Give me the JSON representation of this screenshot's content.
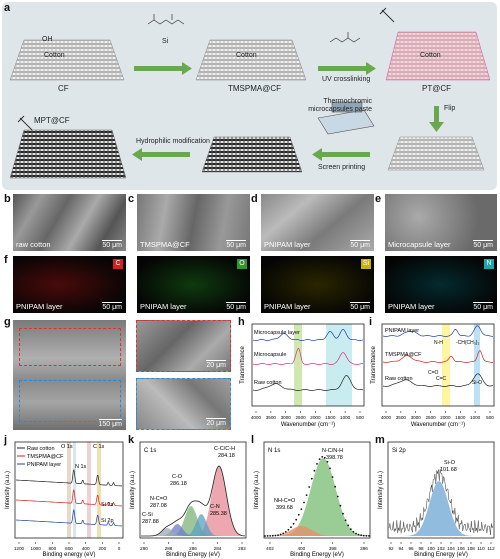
{
  "panel_labels": {
    "a": "a",
    "b": "b",
    "c": "c",
    "d": "d",
    "e": "e",
    "f": "f",
    "g": "g",
    "h": "h",
    "i": "i",
    "j": "j",
    "k": "k",
    "l": "l",
    "m": "m"
  },
  "schematic": {
    "cotton_label": "Cotton",
    "cf": "CF",
    "tmspma_cf": "TMSPMA@CF",
    "pt_cf": "PT@CF",
    "uv": "UV crosslinking",
    "flip": "Flip",
    "paste": "Thermochromic microcapsules paste",
    "screen": "Screen printing",
    "hydrophilic": "Hydrophilic modification",
    "mpt": "MPT@CF",
    "oh": "OH",
    "si": "Si"
  },
  "sem": [
    {
      "label": "raw cotton",
      "scale": "50 μm"
    },
    {
      "label": "TMSPMA@CF",
      "scale": "50 μm"
    },
    {
      "label": "PNIPAM layer",
      "scale": "50 μm"
    },
    {
      "label": "Microcapsule layer",
      "scale": "50 μm"
    }
  ],
  "edx": [
    {
      "label": "PNIPAM layer",
      "scale": "50 μm",
      "element": "C",
      "color": "#d42020"
    },
    {
      "label": "PNIPAM layer",
      "scale": "50 μm",
      "element": "O",
      "color": "#2a9a2a"
    },
    {
      "label": "PNIPAM layer",
      "scale": "50 μm",
      "element": "Si",
      "color": "#c8b400"
    },
    {
      "label": "PNIPAM layer",
      "scale": "50 μm",
      "element": "N",
      "color": "#1aa7b0"
    }
  ],
  "g_panel": {
    "scale_main": "150 μm",
    "scale_top": "20 μm",
    "scale_bottom": "20 μm"
  },
  "chart_data": [
    {
      "panel": "h",
      "type": "line",
      "xlabel": "Wavenumber (cm⁻¹)",
      "ylabel": "Transmittance",
      "xticks": [
        "4000",
        "3500",
        "3000",
        "2500",
        "2000",
        "1500",
        "1000",
        "500"
      ],
      "series": [
        {
          "name": "Microcapsule layer",
          "color": "#1f3fb0"
        },
        {
          "name": "Microcapsule",
          "color": "#e0307a"
        },
        {
          "name": "Raw cotton",
          "color": "#222222"
        }
      ]
    },
    {
      "panel": "i",
      "type": "line",
      "xlabel": "Wavenumber (cm⁻¹)",
      "ylabel": "Transmittance",
      "xticks": [
        "4000",
        "3500",
        "3000",
        "2500",
        "2000",
        "1500",
        "1000",
        "500"
      ],
      "series": [
        {
          "name": "PNIPAM layer",
          "color": "#1f3fb0"
        },
        {
          "name": "TMSPMA@CF",
          "color": "#d42020"
        },
        {
          "name": "Raw cotton",
          "color": "#222222"
        }
      ],
      "annotations": [
        "N-H",
        "-CH(CH₃)₂",
        "C=O",
        "C=C",
        "Si-O"
      ]
    },
    {
      "panel": "j",
      "type": "line",
      "xlabel": "Binding energy (eV)",
      "ylabel": "Intensity (a.u.)",
      "xticks": [
        "1200",
        "1000",
        "800",
        "600",
        "400",
        "200",
        "0"
      ],
      "series": [
        {
          "name": "Raw cotton",
          "color": "#222222"
        },
        {
          "name": "TMSPMA@CF",
          "color": "#d42020"
        },
        {
          "name": "PNIPAM layer",
          "color": "#1f3fb0"
        }
      ],
      "annotations": [
        "O 1s",
        "N 1s",
        "C 1s",
        "Si 2s",
        "Si 2p"
      ]
    },
    {
      "panel": "k",
      "type": "area",
      "xlabel": "Binding Energy (eV)",
      "ylabel": "Intensity (a.u.)",
      "title": "C 1s",
      "xticks": [
        "290",
        "288",
        "286",
        "284",
        "282"
      ],
      "peaks": [
        {
          "name": "C-C/C-H",
          "value": "284.18"
        },
        {
          "name": "C-O",
          "value": "286.18"
        },
        {
          "name": "C-N",
          "value": "285.38"
        },
        {
          "name": "N-C=O",
          "value": "287.08"
        },
        {
          "name": "C-Si",
          "value": "287.88"
        }
      ]
    },
    {
      "panel": "l",
      "type": "area",
      "xlabel": "Binding Energy (eV)",
      "ylabel": "Intensity (a.u.)",
      "title": "N 1s",
      "xticks": [
        "402",
        "400",
        "398",
        "396"
      ],
      "peaks": [
        {
          "name": "N-C/N-H",
          "value": "398.78"
        },
        {
          "name": "NH-C=O",
          "value": "399.68"
        }
      ]
    },
    {
      "panel": "m",
      "type": "area",
      "xlabel": "Binding Energy (eV)",
      "ylabel": "Intensity (a.u.)",
      "title": "Si 2p",
      "xticks": [
        "92",
        "94",
        "96",
        "98",
        "100",
        "102",
        "104",
        "106",
        "108",
        "110",
        "112"
      ],
      "peaks": [
        {
          "name": "Si-O",
          "value": "101.68"
        }
      ]
    }
  ]
}
